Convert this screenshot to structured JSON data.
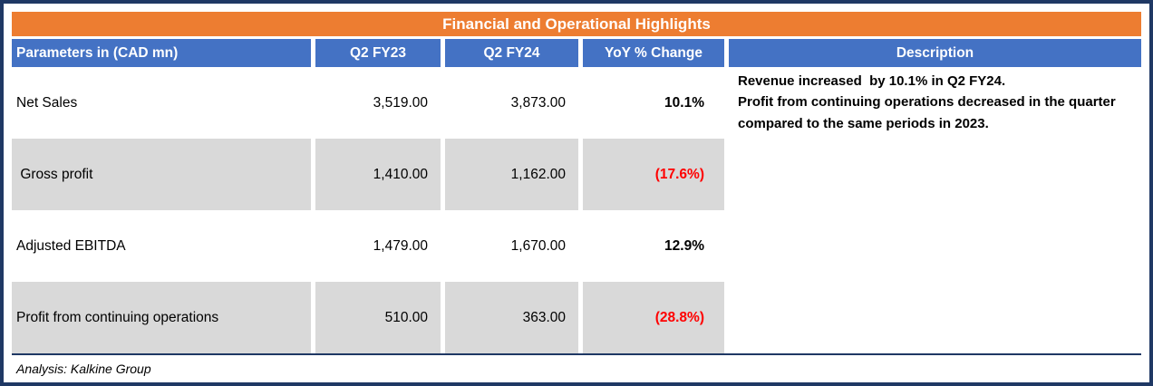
{
  "title": "Financial and Operational Highlights",
  "table": {
    "headers": [
      "Parameters in (CAD mn)",
      "Q2 FY23",
      "Q2 FY24",
      "YoY % Change",
      "Description"
    ],
    "rows": [
      {
        "param": "Net Sales",
        "q2fy23": "3,519.00",
        "q2fy24": "3,873.00",
        "yoy": "10.1%"
      },
      {
        "param": " Gross profit",
        "q2fy23": "1,410.00",
        "q2fy24": "1,162.00",
        "yoy": "(17.6%)"
      },
      {
        "param": "Adjusted EBITDA",
        "q2fy23": "1,479.00",
        "q2fy24": "1,670.00",
        "yoy": "12.9%"
      },
      {
        "param": "Profit from continuing operations",
        "q2fy23": "510.00",
        "q2fy24": "363.00",
        "yoy": "(28.8%)"
      }
    ],
    "description": "Revenue increased  by 10.1% in Q2 FY24.\nProfit from continuing operations decreased in the quarter  compared to the same periods in 2023."
  },
  "footer": "Analysis: Kalkine Group",
  "colors": {
    "title_bg": "#ED7D31",
    "header_bg": "#4472C4",
    "shaded_row": "#D9D9D9",
    "negative_text": "#FF0000",
    "border": "#1F3864"
  },
  "chart_data": {
    "type": "table",
    "title": "Financial and Operational Highlights",
    "columns": [
      "Parameters in (CAD mn)",
      "Q2 FY23",
      "Q2 FY24",
      "YoY % Change"
    ],
    "rows": [
      [
        "Net Sales",
        3519.0,
        3873.0,
        "10.1%"
      ],
      [
        "Gross profit",
        1410.0,
        1162.0,
        "(17.6%)"
      ],
      [
        "Adjusted EBITDA",
        1479.0,
        1670.0,
        "12.9%"
      ],
      [
        "Profit from continuing operations",
        510.0,
        363.0,
        "(28.8%)"
      ]
    ],
    "notes": "Revenue increased by 10.1% in Q2 FY24. Profit from continuing operations decreased in the quarter compared to the same periods in 2023.",
    "source": "Analysis: Kalkine Group"
  }
}
